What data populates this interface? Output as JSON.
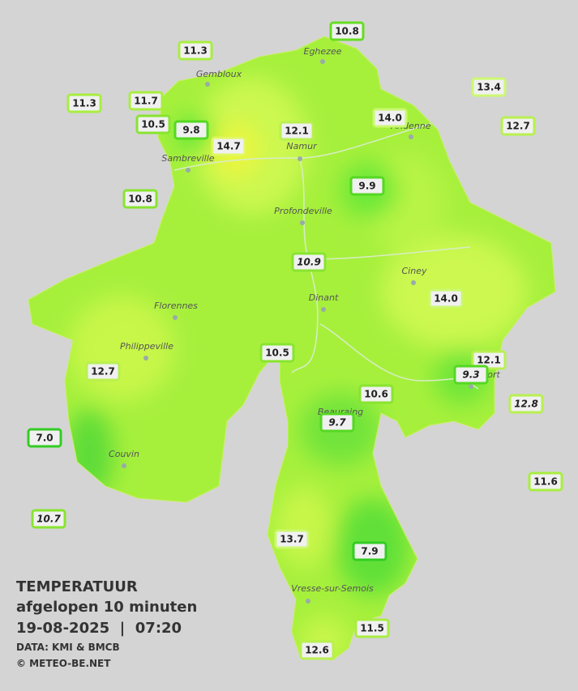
{
  "title": {
    "line1": "TEMPERATUUR",
    "line2": "afgelopen 10 minuten",
    "line3": "19-08-2025  |  07:20",
    "source": "DATA: KMI & BMCB",
    "copyright": "© METEO-BE.NET"
  },
  "cities": [
    "Eghezee",
    "Gembloux",
    "Andenne",
    "Namur",
    "Sambreville",
    "Profondeville",
    "Ciney",
    "Florennes",
    "Dinant",
    "Philippeville",
    "Rochefort",
    "Beauraing",
    "Couvin",
    "Vresse-sur-Semois"
  ],
  "stations": [
    {
      "label": "10.8",
      "italic": false,
      "border": "#66dd22"
    },
    {
      "label": "11.3",
      "italic": false,
      "border": "#a8ee40"
    },
    {
      "label": "13.4",
      "italic": false,
      "border": "#ccf870"
    },
    {
      "label": "11.3",
      "italic": false,
      "border": "#a8ee40"
    },
    {
      "label": "11.7",
      "italic": false,
      "border": "#a8ee40"
    },
    {
      "label": "14.0",
      "italic": false,
      "border": "#ccf870"
    },
    {
      "label": "12.7",
      "italic": false,
      "border": "#b8f050"
    },
    {
      "label": "10.5",
      "italic": false,
      "border": "#88e430"
    },
    {
      "label": "9.8",
      "italic": false,
      "border": "#55d822"
    },
    {
      "label": "12.1",
      "italic": false,
      "border": "#b8f050"
    },
    {
      "label": "14.7",
      "italic": false,
      "border": "#e0f860"
    },
    {
      "label": "9.9",
      "italic": false,
      "border": "#55d822"
    },
    {
      "label": "10.8",
      "italic": false,
      "border": "#88e430"
    },
    {
      "label": "10.9",
      "italic": true,
      "border": "#88e430"
    },
    {
      "label": "14.0",
      "italic": false,
      "border": "#ccf870"
    },
    {
      "label": "10.5",
      "italic": false,
      "border": "#88e430"
    },
    {
      "label": "12.1",
      "italic": false,
      "border": "#b8f050"
    },
    {
      "label": "9.3",
      "italic": true,
      "border": "#55d822"
    },
    {
      "label": "12.7",
      "italic": false,
      "border": "#b8f050"
    },
    {
      "label": "10.6",
      "italic": false,
      "border": "#88e430"
    },
    {
      "label": "12.8",
      "italic": true,
      "border": "#b8f050"
    },
    {
      "label": "9.7",
      "italic": true,
      "border": "#55d822"
    },
    {
      "label": "7.0",
      "italic": false,
      "border": "#33cc22"
    },
    {
      "label": "11.6",
      "italic": false,
      "border": "#a8ee40"
    },
    {
      "label": "10.7",
      "italic": true,
      "border": "#88e430"
    },
    {
      "label": "13.7",
      "italic": false,
      "border": "#ccf870"
    },
    {
      "label": "7.9",
      "italic": false,
      "border": "#33cc22"
    },
    {
      "label": "11.5",
      "italic": false,
      "border": "#a8ee40"
    },
    {
      "label": "12.6",
      "italic": false,
      "border": "#b8f050"
    }
  ]
}
